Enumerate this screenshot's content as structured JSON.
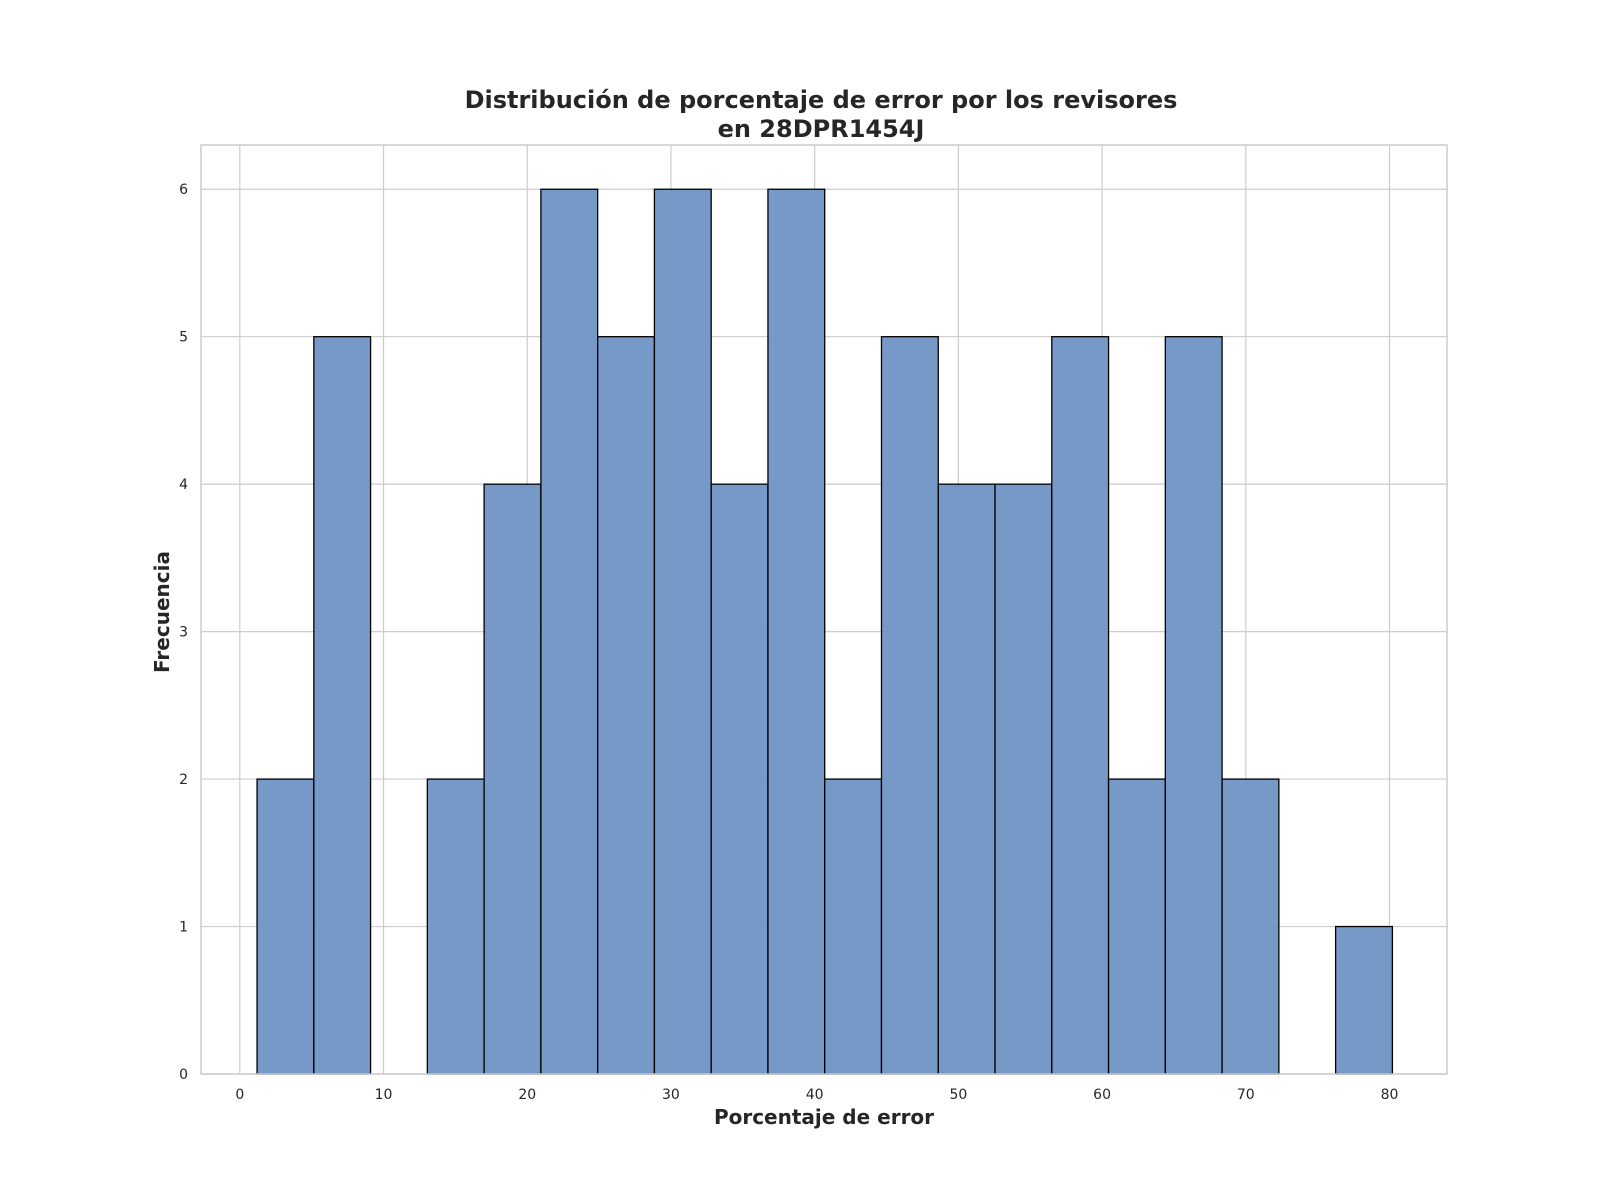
{
  "chart_data": {
    "type": "bar",
    "subtype": "histogram",
    "title_lines": [
      "Distribución de porcentaje de error por los revisores",
      "en 28DPR1454J"
    ],
    "xlabel": "Porcentaje de error",
    "ylabel": "Frecuencia",
    "xlim": [
      -2.7,
      84
    ],
    "ylim": [
      0,
      6.3
    ],
    "xticks": [
      0,
      10,
      20,
      30,
      40,
      50,
      60,
      70,
      80
    ],
    "yticks": [
      0,
      1,
      2,
      3,
      4,
      5,
      6
    ],
    "grid": true,
    "bar_color": "#7094c4",
    "edge_color": "#000000",
    "bins": [
      {
        "x0": 1.2,
        "x1": 5.15,
        "count": 2
      },
      {
        "x0": 5.15,
        "x1": 9.1,
        "count": 5
      },
      {
        "x0": 9.1,
        "x1": 13.05,
        "count": 0
      },
      {
        "x0": 13.05,
        "x1": 17.0,
        "count": 2
      },
      {
        "x0": 17.0,
        "x1": 20.95,
        "count": 4
      },
      {
        "x0": 20.95,
        "x1": 24.9,
        "count": 6
      },
      {
        "x0": 24.9,
        "x1": 28.85,
        "count": 5
      },
      {
        "x0": 28.85,
        "x1": 32.8,
        "count": 6
      },
      {
        "x0": 32.8,
        "x1": 36.75,
        "count": 4
      },
      {
        "x0": 36.75,
        "x1": 40.7,
        "count": 6
      },
      {
        "x0": 40.7,
        "x1": 44.65,
        "count": 2
      },
      {
        "x0": 44.65,
        "x1": 48.6,
        "count": 5
      },
      {
        "x0": 48.6,
        "x1": 52.55,
        "count": 4
      },
      {
        "x0": 52.55,
        "x1": 56.5,
        "count": 4
      },
      {
        "x0": 56.5,
        "x1": 60.45,
        "count": 5
      },
      {
        "x0": 60.45,
        "x1": 64.4,
        "count": 2
      },
      {
        "x0": 64.4,
        "x1": 68.35,
        "count": 5
      },
      {
        "x0": 68.35,
        "x1": 72.3,
        "count": 2
      },
      {
        "x0": 72.3,
        "x1": 76.25,
        "count": 0
      },
      {
        "x0": 76.25,
        "x1": 80.2,
        "count": 1
      }
    ]
  }
}
